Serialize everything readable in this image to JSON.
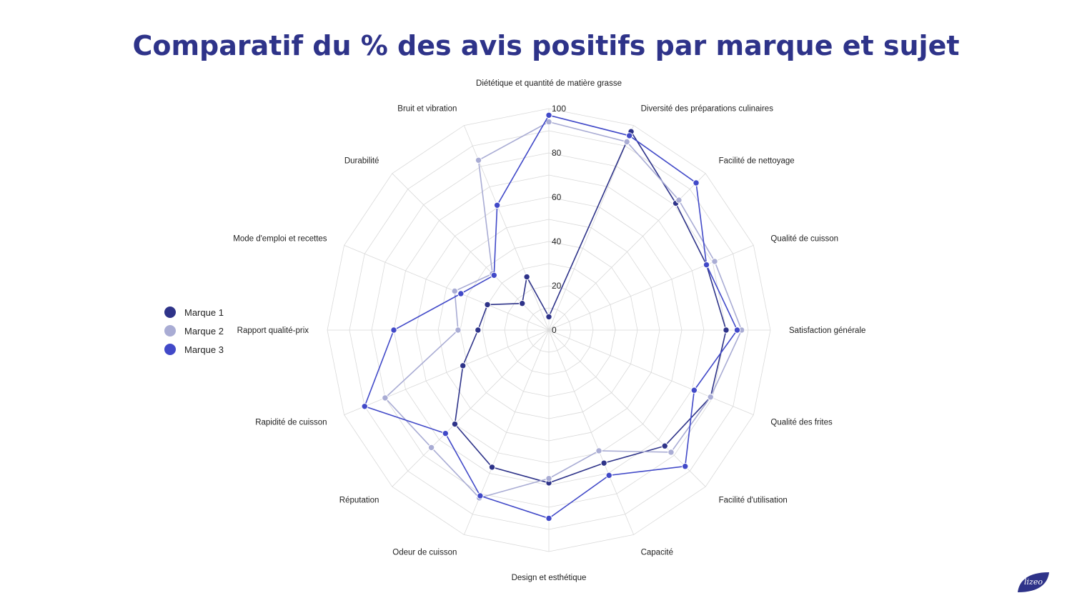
{
  "title": "Comparatif du % des avis positifs par marque et sujet",
  "logo_text": "lizeo",
  "colors": {
    "title": "#2e3389",
    "grid": "#d9d9d9",
    "axis_text": "#222222"
  },
  "chart_data": {
    "type": "radar",
    "title": "Comparatif du % des avis positifs par marque et sujet",
    "categories": [
      "Diététique et quantité de matière grasse",
      "Diversité des préparations culinaires",
      "Facilité de nettoyage",
      "Qualité de cuisson",
      "Satisfaction générale",
      "Qualité des frites",
      "Facilité d'utilisation",
      "Capacité",
      "Design et esthétique",
      "Odeur de cuisson",
      "Réputation",
      "Rapidité de cuisson",
      "Rapport qualité-prix",
      "Mode d'emploi et recettes",
      "Durabilité",
      "Bruit et vibration"
    ],
    "r_ticks": [
      "0",
      "20",
      "40",
      "60",
      "80",
      "100"
    ],
    "r_range": [
      0,
      100
    ],
    "legend_position": "left",
    "grid": true,
    "series": [
      {
        "name": "Marque 1",
        "color": "#2e3389",
        "values": [
          6,
          97,
          81,
          77,
          80,
          79,
          74,
          65,
          69,
          67,
          60,
          42,
          32,
          30,
          17,
          26
        ]
      },
      {
        "name": "Marque 2",
        "color": "#a9acd4",
        "values": [
          94,
          92,
          83,
          81,
          87,
          79,
          78,
          59,
          67,
          82,
          75,
          80,
          41,
          46,
          36,
          83
        ]
      },
      {
        "name": "Marque 3",
        "color": "#4149c8",
        "values": [
          97,
          95,
          94,
          77,
          85,
          71,
          87,
          71,
          85,
          81,
          66,
          90,
          70,
          43,
          35,
          61
        ]
      }
    ]
  }
}
